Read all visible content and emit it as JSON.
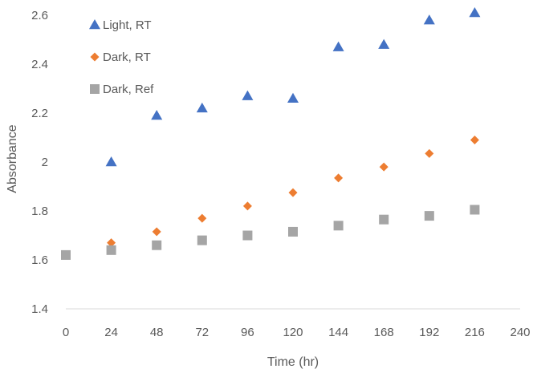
{
  "chart_data": {
    "type": "scatter",
    "title": "",
    "xlabel": "Time (hr)",
    "ylabel": "Absorbance",
    "xlim": [
      0,
      240
    ],
    "ylim": [
      1.4,
      2.7
    ],
    "x_ticks": [
      "0",
      "24",
      "48",
      "72",
      "96",
      "120",
      "144",
      "168",
      "192",
      "216",
      "240"
    ],
    "y_ticks": [
      "1.4",
      "1.6",
      "1.8",
      "2",
      "2.2",
      "2.4",
      "2.6"
    ],
    "grid": false,
    "legend_position": "top-left",
    "series": [
      {
        "name": "Light, RT",
        "marker": "triangle",
        "color": "#4472C4",
        "points": [
          [
            24,
            2.0
          ],
          [
            48,
            2.19
          ],
          [
            72,
            2.22
          ],
          [
            96,
            2.27
          ],
          [
            120,
            2.26
          ],
          [
            144,
            2.47
          ],
          [
            168,
            2.48
          ],
          [
            192,
            2.58
          ],
          [
            216,
            2.61
          ]
        ]
      },
      {
        "name": "Dark, RT",
        "marker": "diamond",
        "color": "#ED7D31",
        "points": [
          [
            24,
            1.67
          ],
          [
            48,
            1.715
          ],
          [
            72,
            1.77
          ],
          [
            96,
            1.82
          ],
          [
            120,
            1.875
          ],
          [
            144,
            1.935
          ],
          [
            168,
            1.98
          ],
          [
            192,
            2.035
          ],
          [
            216,
            2.09
          ]
        ]
      },
      {
        "name": "Dark, Ref",
        "marker": "square",
        "color": "#A5A5A5",
        "points": [
          [
            0,
            1.62
          ],
          [
            24,
            1.64
          ],
          [
            48,
            1.66
          ],
          [
            72,
            1.68
          ],
          [
            96,
            1.7
          ],
          [
            120,
            1.715
          ],
          [
            144,
            1.74
          ],
          [
            168,
            1.765
          ],
          [
            192,
            1.78
          ],
          [
            216,
            1.805
          ]
        ]
      }
    ]
  }
}
